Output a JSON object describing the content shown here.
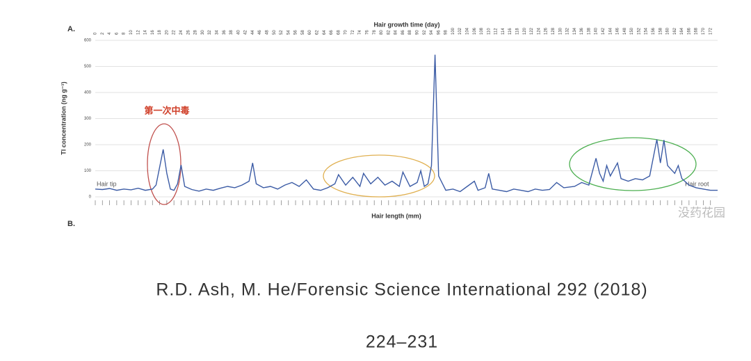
{
  "chart_data": {
    "type": "line",
    "panel_a": "A.",
    "panel_b": "B.",
    "xlabel_top": "Hair growth time (day)",
    "xlabel": "Hair length (mm)",
    "ylabel": "Tl concentration (ng g⁻¹)",
    "x": [
      0,
      2,
      4,
      6,
      8,
      10,
      12,
      14,
      16,
      17,
      19,
      20,
      21,
      22,
      23,
      24,
      25,
      27,
      29,
      31,
      33,
      35,
      37,
      39,
      41,
      43,
      44,
      45,
      47,
      49,
      51,
      53,
      55,
      57,
      59,
      61,
      63,
      65,
      67,
      68,
      70,
      72,
      74,
      75,
      77,
      79,
      81,
      83,
      85,
      86,
      88,
      90,
      91,
      92,
      93,
      94,
      95,
      96,
      98,
      100,
      102,
      104,
      106,
      107,
      109,
      110,
      111,
      113,
      115,
      117,
      119,
      121,
      123,
      125,
      127,
      129,
      131,
      134,
      136,
      138,
      140,
      141,
      142,
      143,
      144,
      146,
      147,
      149,
      151,
      153,
      155,
      157,
      158,
      159,
      160,
      162,
      163,
      164,
      166,
      168,
      170,
      172,
      174
    ],
    "values": [
      30,
      28,
      32,
      25,
      30,
      27,
      33,
      25,
      30,
      45,
      182,
      90,
      30,
      25,
      50,
      122,
      40,
      28,
      22,
      30,
      25,
      33,
      40,
      35,
      45,
      60,
      130,
      50,
      35,
      40,
      30,
      45,
      55,
      40,
      65,
      30,
      25,
      35,
      50,
      85,
      45,
      75,
      40,
      90,
      50,
      75,
      45,
      60,
      40,
      95,
      40,
      55,
      100,
      40,
      50,
      120,
      545,
      80,
      25,
      30,
      20,
      40,
      60,
      25,
      35,
      90,
      30,
      25,
      20,
      30,
      25,
      20,
      30,
      25,
      28,
      55,
      35,
      40,
      55,
      45,
      148,
      90,
      60,
      120,
      80,
      130,
      70,
      60,
      70,
      65,
      80,
      220,
      130,
      218,
      120,
      90,
      120,
      70,
      45,
      35,
      30,
      25,
      25
    ],
    "color": "#3b5ba5",
    "xlim": [
      0,
      174
    ],
    "ylim": [
      0,
      600
    ],
    "xticks": [
      0,
      2,
      4,
      6,
      8,
      10,
      12,
      14,
      16,
      18,
      20,
      22,
      24,
      26,
      28,
      30,
      32,
      34,
      36,
      38,
      40,
      42,
      44,
      46,
      48,
      50,
      52,
      54,
      56,
      58,
      60,
      62,
      64,
      66,
      68,
      70,
      72,
      74,
      76,
      78,
      80,
      82,
      84,
      86,
      88,
      90,
      92,
      94,
      96,
      98,
      100,
      102,
      104,
      106,
      108,
      110,
      112,
      114,
      116,
      118,
      120,
      122,
      124,
      126,
      128,
      130,
      132,
      134,
      136,
      138,
      140,
      142,
      144,
      146,
      148,
      150,
      152,
      154,
      156,
      158,
      160,
      162,
      164,
      166,
      168,
      170,
      172
    ],
    "yticks": [
      0,
      100,
      200,
      300,
      400,
      500,
      600
    ],
    "grid": true,
    "annotations": {
      "first_poisoning": "第一次中毒",
      "hair_tip": "Hair tip",
      "hair_root": "Hair root"
    }
  },
  "watermark": "没药花园",
  "caption": {
    "line1": "R.D. Ash, M. He/Forensic Science International 292 (2018)",
    "line2": "224–231"
  }
}
